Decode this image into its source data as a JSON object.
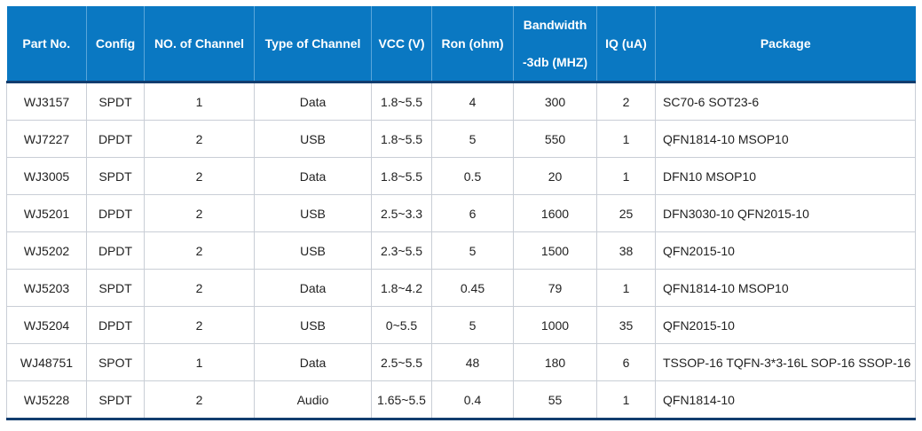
{
  "table": {
    "header": [
      "Part No.",
      "Config",
      "NO. of Channel",
      "Type of Channel",
      "VCC (V)",
      "Ron (ohm)",
      [
        "Bandwidth",
        "-3db (MHZ)"
      ],
      "IQ (uA)",
      "Package"
    ],
    "rows": [
      [
        "WJ3157",
        "SPDT",
        "1",
        "Data",
        "1.8~5.5",
        "4",
        "300",
        "2",
        "SC70-6 SOT23-6"
      ],
      [
        "WJ7227",
        "DPDT",
        "2",
        "USB",
        "1.8~5.5",
        "5",
        "550",
        "1",
        "QFN1814-10 MSOP10"
      ],
      [
        "WJ3005",
        "SPDT",
        "2",
        "Data",
        "1.8~5.5",
        "0.5",
        "20",
        "1",
        "DFN10 MSOP10"
      ],
      [
        "WJ5201",
        "DPDT",
        "2",
        "USB",
        "2.5~3.3",
        "6",
        "1600",
        "25",
        "DFN3030-10 QFN2015-10"
      ],
      [
        "WJ5202",
        "DPDT",
        "2",
        "USB",
        "2.3~5.5",
        "5",
        "1500",
        "38",
        "QFN2015-10"
      ],
      [
        "WJ5203",
        "SPDT",
        "2",
        "Data",
        "1.8~4.2",
        "0.45",
        "79",
        "1",
        "QFN1814-10 MSOP10"
      ],
      [
        "WJ5204",
        "DPDT",
        "2",
        "USB",
        "0~5.5",
        "5",
        "1000",
        "35",
        "QFN2015-10"
      ],
      [
        "WJ48751",
        "SPOT",
        "1",
        "Data",
        "2.5~5.5",
        "48",
        "180",
        "6",
        "TSSOP-16 TQFN-3*3-16L SOP-16 SSOP-16"
      ],
      [
        "WJ5228",
        "SPDT",
        "2",
        "Audio",
        "1.65~5.5",
        "0.4",
        "55",
        "1",
        "QFN1814-10"
      ]
    ]
  }
}
